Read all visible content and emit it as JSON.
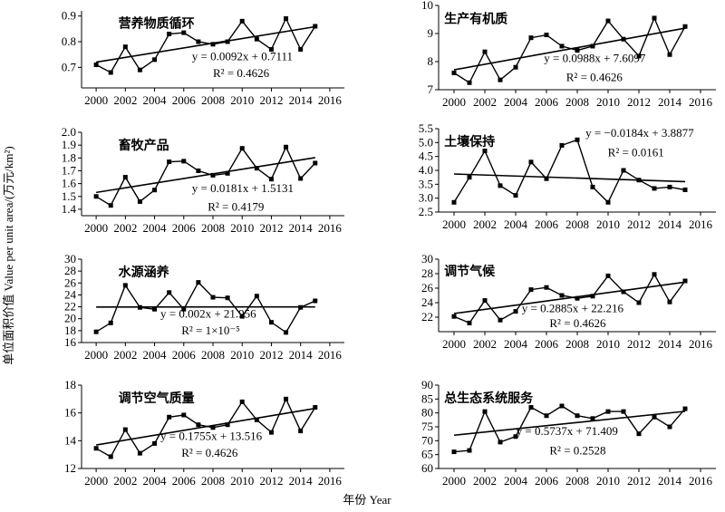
{
  "figure": {
    "ylabel": "单位面积价值 Value per unit area/(万元/km²)",
    "xlabel": "年份 Year"
  },
  "chart_data": [
    {
      "type": "line",
      "title": "营养物质循环",
      "x": [
        2000,
        2001,
        2002,
        2003,
        2004,
        2005,
        2006,
        2007,
        2008,
        2009,
        2010,
        2011,
        2012,
        2013,
        2014,
        2015
      ],
      "values": [
        0.71,
        0.68,
        0.78,
        0.69,
        0.73,
        0.83,
        0.835,
        0.8,
        0.79,
        0.8,
        0.88,
        0.81,
        0.77,
        0.89,
        0.77,
        0.86
      ],
      "trend": {
        "slope": 0.0092,
        "intercept": 0.7111
      },
      "equation": "y = 0.0092x + 0.7111",
      "r2": "R² = 0.4626",
      "xlim": [
        1999,
        2017
      ],
      "ylim": [
        0.62,
        0.92
      ],
      "yticks": [
        0.7,
        0.8,
        0.9
      ],
      "ytick_labels": [
        "0.7",
        "0.8",
        "0.9"
      ],
      "xticks": [
        2000,
        2002,
        2004,
        2006,
        2008,
        2010,
        2012,
        2014,
        2016
      ]
    },
    {
      "type": "line",
      "title": "生产有机质",
      "x": [
        2000,
        2001,
        2002,
        2003,
        2004,
        2005,
        2006,
        2007,
        2008,
        2009,
        2010,
        2011,
        2012,
        2013,
        2014,
        2015
      ],
      "values": [
        7.6,
        7.25,
        8.35,
        7.35,
        7.8,
        8.85,
        8.95,
        8.55,
        8.4,
        8.55,
        9.45,
        8.8,
        8.2,
        9.55,
        8.25,
        9.25
      ],
      "trend": {
        "slope": 0.0988,
        "intercept": 7.6097
      },
      "equation": "y = 0.0988x + 7.6097",
      "r2": "R² = 0.4626",
      "xlim": [
        1999,
        2017
      ],
      "ylim": [
        7,
        10
      ],
      "yticks": [
        7,
        8,
        9,
        10
      ],
      "ytick_labels": [
        "7",
        "8",
        "9",
        "10"
      ],
      "xticks": [
        2000,
        2002,
        2004,
        2006,
        2008,
        2010,
        2012,
        2014,
        2016
      ]
    },
    {
      "type": "line",
      "title": "畜牧产品",
      "x": [
        2000,
        2001,
        2002,
        2003,
        2004,
        2005,
        2006,
        2007,
        2008,
        2009,
        2010,
        2011,
        2012,
        2013,
        2014,
        2015
      ],
      "values": [
        1.5,
        1.43,
        1.65,
        1.46,
        1.55,
        1.77,
        1.775,
        1.7,
        1.665,
        1.68,
        1.875,
        1.72,
        1.635,
        1.885,
        1.64,
        1.76
      ],
      "trend": {
        "slope": 0.0181,
        "intercept": 1.5131
      },
      "equation": "y = 0.0181x + 1.5131",
      "r2": "R² = 0.4179",
      "xlim": [
        1999,
        2017
      ],
      "ylim": [
        1.35,
        2.0
      ],
      "yticks": [
        1.4,
        1.5,
        1.6,
        1.7,
        1.8,
        1.9,
        2.0
      ],
      "ytick_labels": [
        "1.4",
        "1.5",
        "1.6",
        "1.7",
        "1.8",
        "1.9",
        "2.0"
      ],
      "xticks": [
        2000,
        2002,
        2004,
        2006,
        2008,
        2010,
        2012,
        2014,
        2016
      ]
    },
    {
      "type": "line",
      "title": "土壤保持",
      "x": [
        2000,
        2001,
        2002,
        2003,
        2004,
        2005,
        2006,
        2007,
        2008,
        2009,
        2010,
        2011,
        2012,
        2013,
        2014,
        2015
      ],
      "values": [
        2.85,
        3.75,
        4.7,
        3.45,
        3.1,
        4.3,
        3.7,
        4.9,
        5.1,
        3.4,
        2.85,
        4.0,
        3.65,
        3.35,
        3.4,
        3.3
      ],
      "trend": {
        "slope": -0.0184,
        "intercept": 3.8877
      },
      "equation": "y =  −0.0184x + 3.8877",
      "r2": "R² = 0.0161",
      "xlim": [
        1999,
        2017
      ],
      "ylim": [
        2.5,
        5.5
      ],
      "yticks": [
        2.5,
        3.0,
        3.5,
        4.0,
        4.5,
        5.0,
        5.5
      ],
      "ytick_labels": [
        "2.5",
        "3.0",
        "3.5",
        "4.0",
        "4.5",
        "5.0",
        "5.5"
      ],
      "xticks": [
        2000,
        2002,
        2004,
        2006,
        2008,
        2010,
        2012,
        2014,
        2016
      ]
    },
    {
      "type": "line",
      "title": "水源涵养",
      "x": [
        2000,
        2001,
        2002,
        2003,
        2004,
        2005,
        2006,
        2007,
        2008,
        2009,
        2010,
        2011,
        2012,
        2013,
        2014,
        2015
      ],
      "values": [
        17.8,
        19.3,
        25.6,
        21.9,
        21.6,
        24.4,
        21.6,
        26.1,
        23.6,
        23.5,
        20.4,
        23.8,
        19.4,
        17.7,
        21.9,
        23.0
      ],
      "trend": {
        "slope": 0.002,
        "intercept": 21.956
      },
      "equation": "y = 0.002x + 21.956",
      "r2": "R² = 1×10⁻⁵",
      "xlim": [
        1999,
        2017
      ],
      "ylim": [
        16,
        30
      ],
      "yticks": [
        16,
        18,
        20,
        22,
        24,
        26,
        28,
        30
      ],
      "ytick_labels": [
        "16",
        "18",
        "20",
        "22",
        "24",
        "26",
        "28",
        "30"
      ],
      "xticks": [
        2000,
        2002,
        2004,
        2006,
        2008,
        2010,
        2012,
        2014,
        2016
      ]
    },
    {
      "type": "line",
      "title": "调节气候",
      "x": [
        2000,
        2001,
        2002,
        2003,
        2004,
        2005,
        2006,
        2007,
        2008,
        2009,
        2010,
        2011,
        2012,
        2013,
        2014,
        2015
      ],
      "values": [
        22.1,
        21.2,
        24.3,
        21.6,
        22.8,
        25.8,
        26.1,
        25.0,
        24.6,
        24.9,
        27.7,
        25.5,
        24.0,
        27.9,
        24.1,
        27.0
      ],
      "trend": {
        "slope": 0.2885,
        "intercept": 22.216
      },
      "equation": "y = 0.2885x + 22.216",
      "r2": "R² = 0.4626",
      "xlim": [
        1999,
        2017
      ],
      "ylim": [
        20,
        30
      ],
      "yticks": [
        22,
        24,
        26,
        28,
        30
      ],
      "ytick_labels": [
        "22",
        "24",
        "26",
        "28",
        "30"
      ],
      "xticks": [
        2000,
        2002,
        2004,
        2006,
        2008,
        2010,
        2012,
        2014,
        2016
      ]
    },
    {
      "type": "line",
      "title": "调节空气质量",
      "x": [
        2000,
        2001,
        2002,
        2003,
        2004,
        2005,
        2006,
        2007,
        2008,
        2009,
        2010,
        2011,
        2012,
        2013,
        2014,
        2015
      ],
      "values": [
        13.45,
        12.85,
        14.8,
        13.1,
        13.8,
        15.7,
        15.85,
        15.15,
        14.95,
        15.15,
        16.8,
        15.5,
        14.6,
        17.0,
        14.7,
        16.4
      ],
      "trend": {
        "slope": 0.1755,
        "intercept": 13.516
      },
      "equation": "y = 0.1755x + 13.516",
      "r2": "R² = 0.4626",
      "xlim": [
        1999,
        2017
      ],
      "ylim": [
        12,
        18
      ],
      "yticks": [
        12,
        14,
        16,
        18
      ],
      "ytick_labels": [
        "12",
        "14",
        "16",
        "18"
      ],
      "xticks": [
        2000,
        2002,
        2004,
        2006,
        2008,
        2010,
        2012,
        2014,
        2016
      ]
    },
    {
      "type": "line",
      "title": "总生态系统服务",
      "x": [
        2000,
        2001,
        2002,
        2003,
        2004,
        2005,
        2006,
        2007,
        2008,
        2009,
        2010,
        2011,
        2012,
        2013,
        2014,
        2015
      ],
      "values": [
        66.0,
        66.5,
        80.5,
        69.5,
        71.5,
        82.0,
        79.0,
        82.5,
        79.0,
        78.0,
        80.5,
        80.5,
        72.5,
        78.5,
        75.0,
        81.5
      ],
      "trend": {
        "slope": 0.5737,
        "intercept": 71.409
      },
      "equation": "y = 0.5737x + 71.409",
      "r2": "R² = 0.2528",
      "xlim": [
        1999,
        2017
      ],
      "ylim": [
        60,
        90
      ],
      "yticks": [
        60,
        65,
        70,
        75,
        80,
        85,
        90
      ],
      "ytick_labels": [
        "60",
        "65",
        "70",
        "75",
        "80",
        "85",
        "90"
      ],
      "xticks": [
        2000,
        2002,
        2004,
        2006,
        2008,
        2010,
        2012,
        2014,
        2016
      ]
    }
  ]
}
